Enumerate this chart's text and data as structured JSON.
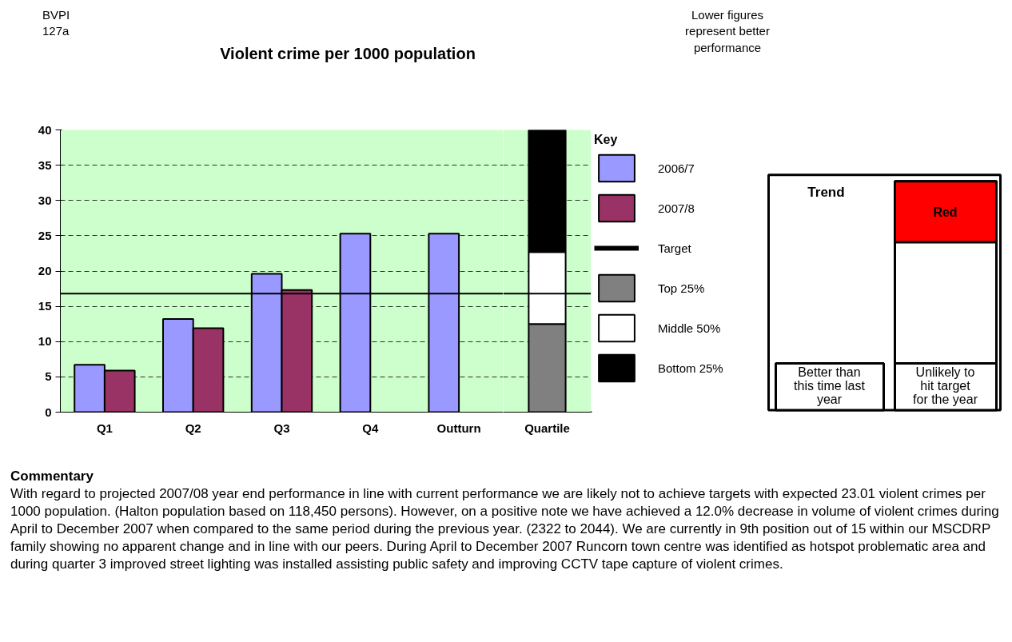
{
  "chart_data": [
    {
      "type": "bar",
      "title": "Violent crime per 1000 population",
      "categories": [
        "Q1",
        "Q2",
        "Q3",
        "Q4",
        "Outturn"
      ],
      "series": [
        {
          "name": "2006/7",
          "color": "#9999ff",
          "values": [
            6.7,
            13.2,
            19.6,
            25.3,
            25.3
          ]
        },
        {
          "name": "2007/8",
          "color": "#993366",
          "values": [
            5.9,
            11.9,
            17.3,
            null,
            null
          ]
        }
      ],
      "ylim": [
        0,
        40
      ],
      "yticks": [
        0,
        5,
        10,
        15,
        20,
        25,
        30,
        35,
        40
      ],
      "grid": "y",
      "legend": "right",
      "ref_lines": [
        {
          "axis": "y",
          "value": 16.8,
          "color": "#000000"
        }
      ],
      "annotations": [
        "BVPI\n127a",
        "Lower figures\nrepresent better\nperformance",
        "Commentary",
        "With regard to projected 2007/08 year end performance in line with current performance we are likely not to achieve targets with expected 23.01 violent crimes per 1000 population. (Halton population based on 118,450 persons). However, on a positive note we have achieved a 12.0% decrease in volume of violent crimes during April to December 2007 when compared to the same period during the previous year. (2322 to 2044). We are currently in 9th position out of 15 within our MSCDRP family showing no apparent change and in line with our peers. During April to December 2007 Runcorn town centre was identified as hotspot problematic area and during quarter 3 improved street lighting was installed assisting public safety and improving CCTV tape capture of violent crimes."
      ]
    },
    {
      "type": "bar",
      "stacked": true,
      "categories": [
        "Quartile"
      ],
      "series": [
        {
          "name": "Top 25%",
          "color": "#808080",
          "values": [
            12.5
          ]
        },
        {
          "name": "Middle 50%",
          "color": "#ffffff",
          "values": [
            10.2
          ]
        },
        {
          "name": "Bottom 25%",
          "color": "#000000",
          "values": [
            17.3
          ]
        }
      ],
      "ylim": [
        0,
        40
      ],
      "yticks": [
        0,
        5,
        10,
        15,
        20,
        25,
        30,
        35,
        40
      ],
      "grid": "y",
      "tick_labels": "x",
      "legend": "right",
      "legend_title": "Key",
      "ref_lines": [
        {
          "axis": "y",
          "value": 16.8,
          "label": "Target",
          "color": "#000000"
        }
      ]
    },
    {
      "type": "other",
      "title": "Trend",
      "annotations": [
        "Red",
        "Better than\nthis time last\nyear",
        "Unlikely to\nhit target\nfor the year"
      ],
      "colors": [
        "#ff0000"
      ]
    }
  ]
}
